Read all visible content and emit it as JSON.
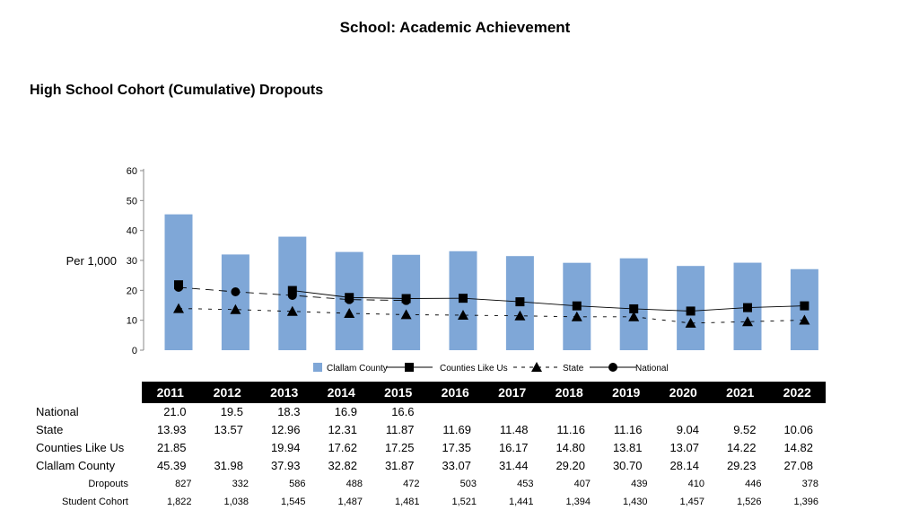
{
  "page_title": "School: Academic Achievement",
  "section_title": "High School Cohort (Cumulative) Dropouts",
  "chart_data": {
    "type": "bar",
    "title": "High School Cohort (Cumulative) Dropouts",
    "ylabel": "Per 1,000",
    "xlabel": "",
    "ylim": [
      0,
      60
    ],
    "yticks": [
      0,
      10,
      20,
      30,
      40,
      50,
      60
    ],
    "categories": [
      "2011",
      "2012",
      "2013",
      "2014",
      "2015",
      "2016",
      "2017",
      "2018",
      "2019",
      "2020",
      "2021",
      "2022"
    ],
    "series": [
      {
        "name": "Clallam County",
        "kind": "bar",
        "color": "#7fa7d7",
        "values": [
          45.39,
          31.98,
          37.93,
          32.82,
          31.87,
          33.07,
          31.44,
          29.2,
          30.7,
          28.14,
          29.23,
          27.08
        ]
      },
      {
        "name": "Counties Like Us",
        "kind": "line",
        "marker": "square",
        "dash": "solid",
        "values": [
          21.85,
          null,
          19.94,
          17.62,
          17.25,
          17.35,
          16.17,
          14.8,
          13.81,
          13.07,
          14.22,
          14.82
        ]
      },
      {
        "name": "State",
        "kind": "line",
        "marker": "triangle",
        "dash": "dashed",
        "values": [
          13.93,
          13.57,
          12.96,
          12.31,
          11.87,
          11.69,
          11.48,
          11.16,
          11.16,
          9.04,
          9.52,
          10.06
        ]
      },
      {
        "name": "National",
        "kind": "line",
        "marker": "circle",
        "dash": "longdash",
        "values": [
          21.0,
          19.5,
          18.3,
          16.9,
          16.6,
          null,
          null,
          null,
          null,
          null,
          null,
          null
        ]
      }
    ],
    "legend": [
      "Clallam County",
      "Counties Like Us",
      "State",
      "National"
    ],
    "legend_position": "bottom"
  },
  "table": {
    "years": [
      "2011",
      "2012",
      "2013",
      "2014",
      "2015",
      "2016",
      "2017",
      "2018",
      "2019",
      "2020",
      "2021",
      "2022"
    ],
    "rows": [
      {
        "label": "National",
        "style": "normal",
        "cells": [
          "21.0",
          "19.5",
          "18.3",
          "16.9",
          "16.6",
          "",
          "",
          "",
          "",
          "",
          "",
          ""
        ]
      },
      {
        "label": "State",
        "style": "normal",
        "cells": [
          "13.93",
          "13.57",
          "12.96",
          "12.31",
          "11.87",
          "11.69",
          "11.48",
          "11.16",
          "11.16",
          "9.04",
          "9.52",
          "10.06"
        ]
      },
      {
        "label": "Counties Like Us",
        "style": "normal",
        "cells": [
          "21.85",
          "",
          "19.94",
          "17.62",
          "17.25",
          "17.35",
          "16.17",
          "14.80",
          "13.81",
          "13.07",
          "14.22",
          "14.82"
        ]
      },
      {
        "label": "Clallam County",
        "style": "normal",
        "cells": [
          "45.39",
          "31.98",
          "37.93",
          "32.82",
          "31.87",
          "33.07",
          "31.44",
          "29.20",
          "30.70",
          "28.14",
          "29.23",
          "27.08"
        ]
      },
      {
        "label": "Dropouts",
        "style": "small",
        "cells": [
          "827",
          "332",
          "586",
          "488",
          "472",
          "503",
          "453",
          "407",
          "439",
          "410",
          "446",
          "378"
        ]
      },
      {
        "label": "Student Cohort",
        "style": "small",
        "cells": [
          "1,822",
          "1,038",
          "1,545",
          "1,487",
          "1,481",
          "1,521",
          "1,441",
          "1,394",
          "1,430",
          "1,457",
          "1,526",
          "1,396"
        ]
      }
    ]
  }
}
